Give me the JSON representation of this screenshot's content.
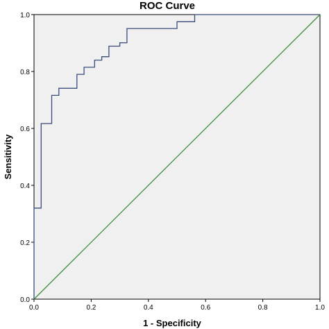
{
  "chart_data": {
    "type": "line",
    "title": "ROC Curve",
    "xlabel": "1 - Specificity",
    "ylabel": "Sensitivity",
    "xlim": [
      0.0,
      1.0
    ],
    "ylim": [
      0.0,
      1.0
    ],
    "x_ticks": [
      "0.0",
      "0.2",
      "0.4",
      "0.6",
      "0.8",
      "1.0"
    ],
    "y_ticks": [
      "0.0",
      "0.2",
      "0.4",
      "0.6",
      "0.8",
      "1.0"
    ],
    "grid": false,
    "plot_background": "#f0f0f0",
    "series": [
      {
        "role": "roc-curve",
        "color": "#3a4a7a",
        "step": true,
        "points": [
          [
            0.0,
            0.0
          ],
          [
            0.0,
            0.32
          ],
          [
            0.025,
            0.32
          ],
          [
            0.025,
            0.617
          ],
          [
            0.062,
            0.617
          ],
          [
            0.062,
            0.716
          ],
          [
            0.087,
            0.716
          ],
          [
            0.087,
            0.741
          ],
          [
            0.15,
            0.741
          ],
          [
            0.15,
            0.79
          ],
          [
            0.175,
            0.79
          ],
          [
            0.175,
            0.815
          ],
          [
            0.212,
            0.815
          ],
          [
            0.212,
            0.84
          ],
          [
            0.237,
            0.84
          ],
          [
            0.237,
            0.852
          ],
          [
            0.262,
            0.852
          ],
          [
            0.262,
            0.889
          ],
          [
            0.3,
            0.889
          ],
          [
            0.3,
            0.901
          ],
          [
            0.325,
            0.901
          ],
          [
            0.325,
            0.951
          ],
          [
            0.5,
            0.951
          ],
          [
            0.5,
            0.975
          ],
          [
            0.562,
            0.975
          ],
          [
            0.562,
            1.0
          ],
          [
            1.0,
            1.0
          ]
        ]
      },
      {
        "role": "reference-line",
        "color": "#3c8c3c",
        "step": false,
        "points": [
          [
            0.0,
            0.0
          ],
          [
            1.0,
            1.0
          ]
        ]
      }
    ]
  }
}
